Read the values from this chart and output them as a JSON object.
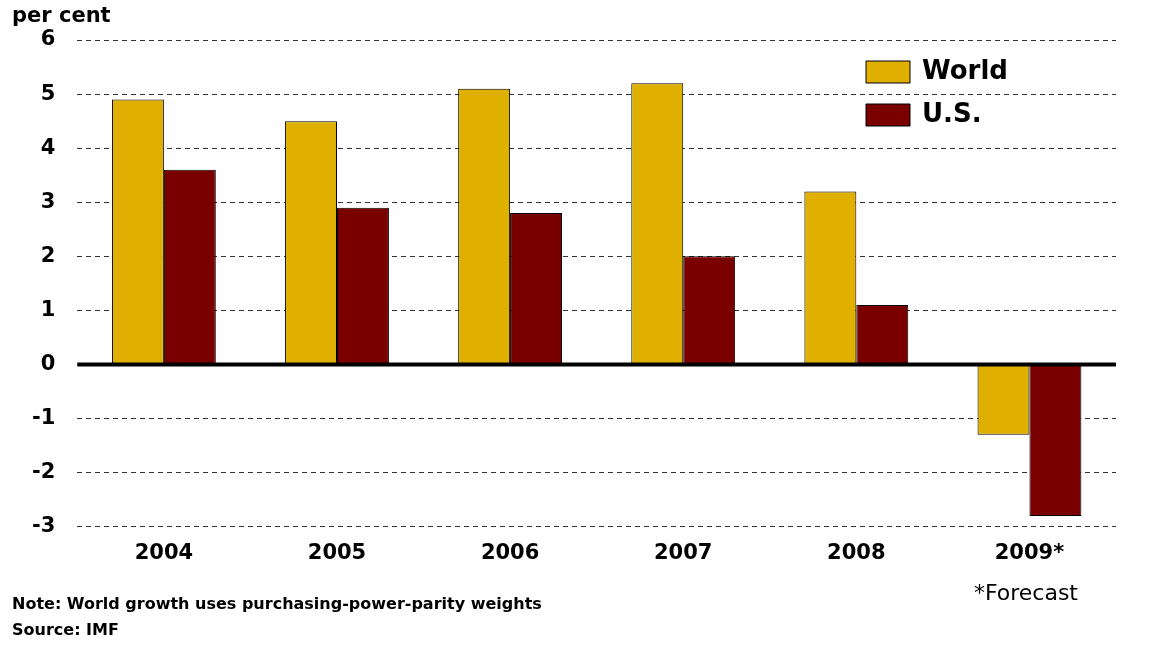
{
  "chart_data": {
    "type": "bar",
    "ylabel": "per cent",
    "categories": [
      "2004",
      "2005",
      "2006",
      "2007",
      "2008",
      "2009*"
    ],
    "series": [
      {
        "name": "World",
        "color": "#e0b000",
        "values": [
          4.9,
          4.5,
          5.1,
          5.2,
          3.2,
          -1.3
        ]
      },
      {
        "name": "U.S.",
        "color": "#7a0000",
        "values": [
          3.6,
          2.9,
          2.8,
          2.0,
          1.1,
          -2.8
        ]
      }
    ],
    "ref_lines": [
      {
        "axis": "y",
        "value": 0,
        "color": "#000000"
      }
    ],
    "ylim": [
      -3,
      6
    ],
    "yticks": [
      -3,
      -2,
      -1,
      0,
      1,
      2,
      3,
      4,
      5,
      6
    ],
    "grid": "y",
    "legend": "top right",
    "annotations": [
      "*Forecast",
      "Note: World growth uses purchasing-power-parity weights",
      "Source: IMF"
    ]
  }
}
